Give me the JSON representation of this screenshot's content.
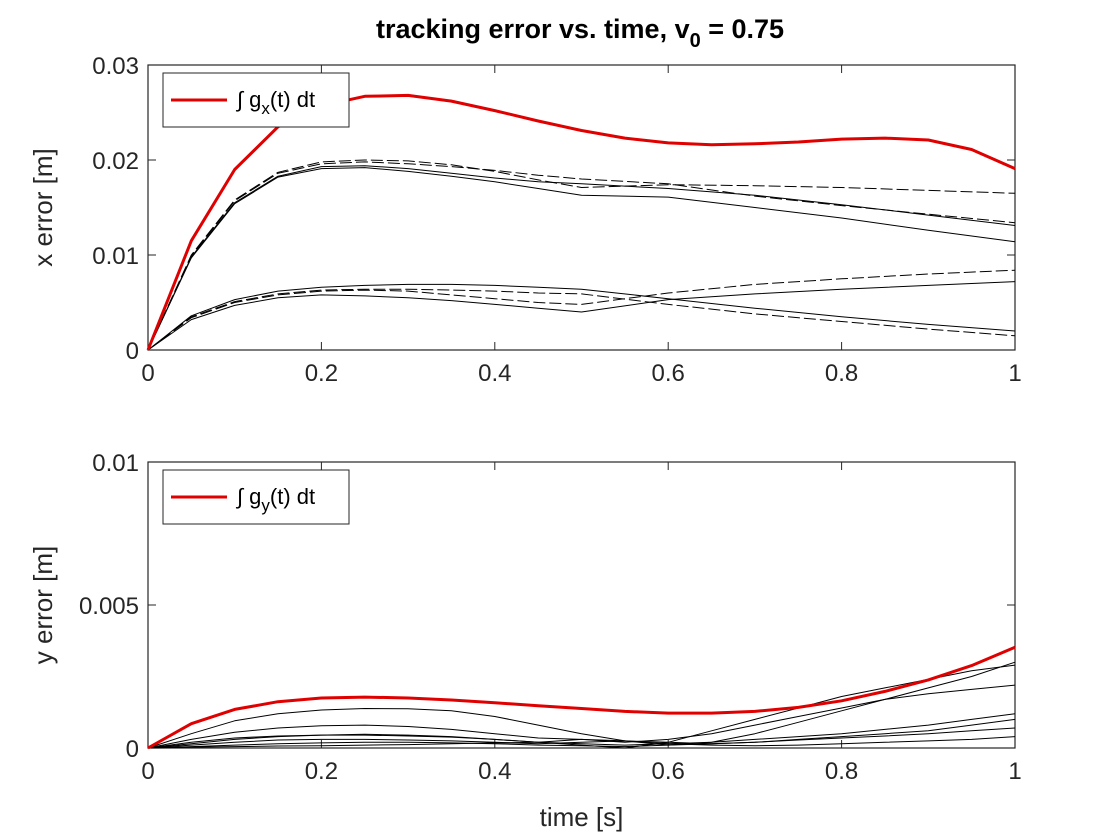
{
  "chart_data": [
    {
      "type": "line",
      "title_main": "tracking error vs. time, v",
      "title_sub": "0",
      "title_tail": " = 0.75",
      "xlabel": "",
      "ylabel": "x error [m]",
      "xlim": [
        0,
        1
      ],
      "ylim": [
        0,
        0.03
      ],
      "xticks": [
        0,
        0.2,
        0.4,
        0.6,
        0.8,
        1
      ],
      "xtick_labels": [
        "0",
        "0.2",
        "0.4",
        "0.6",
        "0.8",
        "1"
      ],
      "yticks": [
        0,
        0.01,
        0.02,
        0.03
      ],
      "ytick_labels": [
        "0",
        "0.01",
        "0.02",
        "0.03"
      ],
      "grid": false,
      "legend": {
        "placement": "top-left",
        "entry_pre": "∫ g",
        "entry_sub": "x",
        "entry_post": "(t) dt"
      },
      "series": [
        {
          "name": "∫ g_x(t) dt",
          "color": "#e00000",
          "style": "solid-bold",
          "x": [
            0,
            0.05,
            0.1,
            0.15,
            0.2,
            0.25,
            0.3,
            0.35,
            0.4,
            0.45,
            0.5,
            0.55,
            0.6,
            0.65,
            0.7,
            0.75,
            0.8,
            0.85,
            0.9,
            0.95,
            1.0
          ],
          "y": [
            0,
            0.0115,
            0.019,
            0.0235,
            0.0257,
            0.0267,
            0.0268,
            0.0262,
            0.0252,
            0.0241,
            0.0231,
            0.0223,
            0.0218,
            0.0216,
            0.0217,
            0.0219,
            0.0222,
            0.0223,
            0.0221,
            0.0211,
            0.0191
          ]
        },
        {
          "color": "#000000",
          "style": "solid",
          "x": [
            0,
            0.05,
            0.1,
            0.15,
            0.2,
            0.25,
            0.3,
            0.35,
            0.4,
            0.45,
            0.5,
            0.6,
            0.7,
            0.8,
            0.9,
            1.0
          ],
          "y": [
            0,
            0.0098,
            0.0155,
            0.0183,
            0.0193,
            0.0194,
            0.0191,
            0.0186,
            0.0181,
            0.0177,
            0.0175,
            0.017,
            0.0163,
            0.0153,
            0.0142,
            0.0131
          ]
        },
        {
          "color": "#000000",
          "style": "dashed",
          "x": [
            0,
            0.05,
            0.1,
            0.15,
            0.2,
            0.25,
            0.3,
            0.35,
            0.4,
            0.45,
            0.5,
            0.6,
            0.7,
            0.8,
            0.9,
            1.0
          ],
          "y": [
            0,
            0.01,
            0.0158,
            0.0187,
            0.0198,
            0.02,
            0.0199,
            0.0195,
            0.0188,
            0.0179,
            0.0171,
            0.0174,
            0.0173,
            0.0171,
            0.0168,
            0.0165
          ]
        },
        {
          "color": "#000000",
          "style": "solid",
          "x": [
            0,
            0.05,
            0.1,
            0.15,
            0.2,
            0.25,
            0.3,
            0.35,
            0.4,
            0.45,
            0.5,
            0.6,
            0.7,
            0.8,
            0.9,
            1.0
          ],
          "y": [
            0,
            0.0097,
            0.0154,
            0.0182,
            0.0191,
            0.0192,
            0.0188,
            0.0183,
            0.0177,
            0.017,
            0.0163,
            0.0161,
            0.015,
            0.0139,
            0.0126,
            0.0114
          ]
        },
        {
          "color": "#000000",
          "style": "dashed",
          "x": [
            0,
            0.05,
            0.1,
            0.15,
            0.2,
            0.25,
            0.3,
            0.35,
            0.4,
            0.45,
            0.5,
            0.6,
            0.7,
            0.8,
            0.9,
            1.0
          ],
          "y": [
            0,
            0.0099,
            0.0157,
            0.0186,
            0.0196,
            0.0198,
            0.0196,
            0.0193,
            0.0189,
            0.0184,
            0.018,
            0.0175,
            0.0162,
            0.0152,
            0.0143,
            0.0134
          ]
        },
        {
          "color": "#000000",
          "style": "solid",
          "x": [
            0,
            0.05,
            0.1,
            0.15,
            0.2,
            0.25,
            0.3,
            0.35,
            0.4,
            0.45,
            0.5,
            0.6,
            0.7,
            0.8,
            0.9,
            1.0
          ],
          "y": [
            0,
            0.0032,
            0.0047,
            0.0055,
            0.0058,
            0.0057,
            0.0055,
            0.0052,
            0.0048,
            0.0044,
            0.004,
            0.0053,
            0.0059,
            0.0064,
            0.0068,
            0.0072
          ]
        },
        {
          "color": "#000000",
          "style": "dashed",
          "x": [
            0,
            0.05,
            0.1,
            0.15,
            0.2,
            0.25,
            0.3,
            0.35,
            0.4,
            0.45,
            0.5,
            0.6,
            0.7,
            0.8,
            0.9,
            1.0
          ],
          "y": [
            0,
            0.0034,
            0.005,
            0.0058,
            0.0062,
            0.0063,
            0.0062,
            0.0058,
            0.0054,
            0.005,
            0.0048,
            0.006,
            0.0069,
            0.0075,
            0.008,
            0.0084
          ]
        },
        {
          "color": "#000000",
          "style": "solid",
          "x": [
            0,
            0.05,
            0.1,
            0.15,
            0.2,
            0.25,
            0.3,
            0.35,
            0.4,
            0.45,
            0.5,
            0.6,
            0.7,
            0.8,
            0.9,
            1.0
          ],
          "y": [
            0,
            0.0036,
            0.0053,
            0.0062,
            0.0066,
            0.0068,
            0.0069,
            0.0069,
            0.0068,
            0.0066,
            0.0064,
            0.0054,
            0.0044,
            0.0035,
            0.0027,
            0.002
          ]
        },
        {
          "color": "#000000",
          "style": "dashed",
          "x": [
            0,
            0.05,
            0.1,
            0.15,
            0.2,
            0.25,
            0.3,
            0.35,
            0.4,
            0.45,
            0.5,
            0.6,
            0.7,
            0.8,
            0.9,
            1.0
          ],
          "y": [
            0,
            0.0035,
            0.0051,
            0.0059,
            0.0063,
            0.0064,
            0.0064,
            0.0063,
            0.0062,
            0.006,
            0.0059,
            0.0048,
            0.0038,
            0.003,
            0.0022,
            0.0015
          ]
        }
      ]
    },
    {
      "type": "line",
      "xlabel": "time [s]",
      "ylabel": "y error [m]",
      "xlim": [
        0,
        1
      ],
      "ylim": [
        0,
        0.01
      ],
      "xticks": [
        0,
        0.2,
        0.4,
        0.6,
        0.8,
        1
      ],
      "xtick_labels": [
        "0",
        "0.2",
        "0.4",
        "0.6",
        "0.8",
        "1"
      ],
      "yticks": [
        0,
        0.005,
        0.01
      ],
      "ytick_labels": [
        "0",
        "0.005",
        "0.01"
      ],
      "grid": false,
      "legend": {
        "placement": "top-left",
        "entry_pre": "∫ g",
        "entry_sub": "y",
        "entry_post": "(t) dt"
      },
      "series": [
        {
          "name": "∫ g_y(t) dt",
          "color": "#e00000",
          "style": "solid-bold",
          "x": [
            0,
            0.05,
            0.1,
            0.15,
            0.2,
            0.25,
            0.3,
            0.35,
            0.4,
            0.45,
            0.5,
            0.55,
            0.6,
            0.65,
            0.7,
            0.75,
            0.8,
            0.85,
            0.9,
            0.95,
            1.0
          ],
          "y": [
            0,
            0.00085,
            0.00135,
            0.00162,
            0.00175,
            0.00178,
            0.00175,
            0.00168,
            0.00158,
            0.00148,
            0.00138,
            0.00128,
            0.00122,
            0.00122,
            0.00128,
            0.00142,
            0.00165,
            0.00198,
            0.00238,
            0.00288,
            0.00352
          ]
        },
        {
          "color": "#000000",
          "style": "solid",
          "x": [
            0,
            0.05,
            0.1,
            0.15,
            0.2,
            0.25,
            0.3,
            0.35,
            0.4,
            0.45,
            0.5,
            0.55,
            0.6,
            0.65,
            0.7,
            0.75,
            0.8,
            0.85,
            0.9,
            0.95,
            1.0
          ],
          "y": [
            0,
            0.0005,
            0.00095,
            0.0012,
            0.00133,
            0.00138,
            0.00137,
            0.0013,
            0.0011,
            0.0008,
            0.0005,
            0.00025,
            0.0001,
            0.0002,
            0.0005,
            0.0009,
            0.0013,
            0.0017,
            0.0021,
            0.0025,
            0.003
          ]
        },
        {
          "color": "#000000",
          "style": "solid",
          "x": [
            0,
            0.05,
            0.1,
            0.15,
            0.2,
            0.25,
            0.3,
            0.35,
            0.4,
            0.45,
            0.5,
            0.55,
            0.6,
            0.65,
            0.7,
            0.75,
            0.8,
            0.85,
            0.9,
            0.95,
            1.0
          ],
          "y": [
            0,
            0.0003,
            0.00055,
            0.0007,
            0.00078,
            0.0008,
            0.00075,
            0.00065,
            0.0005,
            0.00035,
            0.0003,
            0.0002,
            0.0003,
            0.0005,
            0.0008,
            0.0011,
            0.0014,
            0.0017,
            0.0019,
            0.00205,
            0.0022
          ]
        },
        {
          "color": "#000000",
          "style": "solid",
          "x": [
            0,
            0.05,
            0.1,
            0.15,
            0.2,
            0.25,
            0.3,
            0.35,
            0.4,
            0.45,
            0.5,
            0.55,
            0.6,
            0.65,
            0.7,
            0.75,
            0.8,
            0.85,
            0.9,
            0.95,
            1.0
          ],
          "y": [
            0,
            0.00015,
            0.0003,
            0.0004,
            0.00045,
            0.00048,
            0.00045,
            0.0004,
            0.0003,
            0.0002,
            0.0001,
            0.0,
            0.0002,
            0.0006,
            0.001,
            0.0014,
            0.0018,
            0.0021,
            0.0024,
            0.0027,
            0.0029
          ]
        },
        {
          "color": "#000000",
          "style": "solid",
          "x": [
            0,
            0.05,
            0.1,
            0.15,
            0.2,
            0.25,
            0.3,
            0.35,
            0.4,
            0.45,
            0.5,
            0.55,
            0.6,
            0.65,
            0.7,
            0.75,
            0.8,
            0.85,
            0.9,
            0.95,
            1.0
          ],
          "y": [
            0,
            0.0002,
            0.00035,
            0.00042,
            0.00045,
            0.00045,
            0.00042,
            0.00038,
            0.0003,
            0.0002,
            0.00015,
            0.0001,
            0.00015,
            0.0002,
            0.0003,
            0.0004,
            0.0005,
            0.00065,
            0.0008,
            0.001,
            0.0012
          ]
        },
        {
          "color": "#000000",
          "style": "solid",
          "x": [
            0,
            0.05,
            0.1,
            0.15,
            0.2,
            0.25,
            0.3,
            0.35,
            0.4,
            0.45,
            0.5,
            0.55,
            0.6,
            0.65,
            0.7,
            0.75,
            0.8,
            0.85,
            0.9,
            0.95,
            1.0
          ],
          "y": [
            0,
            0.0001,
            0.0002,
            0.00028,
            0.0003,
            0.0003,
            0.00028,
            0.00025,
            0.0002,
            0.00015,
            0.0002,
            0.00025,
            0.0002,
            0.00015,
            0.0002,
            0.0003,
            0.0004,
            0.0005,
            0.0006,
            0.0008,
            0.001
          ]
        },
        {
          "color": "#000000",
          "style": "solid",
          "x": [
            0,
            0.05,
            0.1,
            0.15,
            0.2,
            0.25,
            0.3,
            0.35,
            0.4,
            0.45,
            0.5,
            0.55,
            0.6,
            0.65,
            0.7,
            0.75,
            0.8,
            0.85,
            0.9,
            0.95,
            1.0
          ],
          "y": [
            0,
            5e-05,
            0.0001,
            0.00015,
            0.00018,
            0.0002,
            0.0002,
            0.00018,
            0.00015,
            0.0001,
            8e-05,
            5e-05,
            0.0001,
            0.00015,
            0.0002,
            0.00028,
            0.00035,
            0.00042,
            0.0005,
            0.0006,
            0.0007
          ]
        },
        {
          "color": "#000000",
          "style": "solid",
          "x": [
            0,
            0.05,
            0.1,
            0.15,
            0.2,
            0.25,
            0.3,
            0.35,
            0.4,
            0.45,
            0.5,
            0.55,
            0.6,
            0.65,
            0.7,
            0.75,
            0.8,
            0.85,
            0.9,
            0.95,
            1.0
          ],
          "y": [
            0,
            3e-05,
            5e-05,
            7e-05,
            8e-05,
            0.0001,
            0.00012,
            0.00015,
            0.00018,
            0.0002,
            0.0003,
            0.00025,
            0.00015,
            0.0001,
            8e-05,
            0.0001,
            0.00015,
            0.0002,
            0.00025,
            0.0003,
            0.0004
          ]
        }
      ]
    }
  ]
}
